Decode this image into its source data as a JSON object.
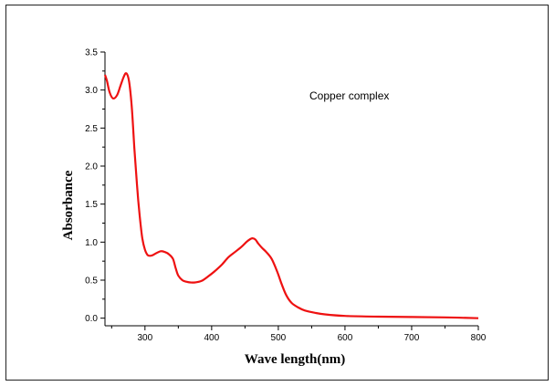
{
  "chart_data": {
    "type": "line",
    "title": "",
    "xlabel": "Wave length(nm)",
    "ylabel": "Absorbance",
    "xlim": [
      240,
      800
    ],
    "ylim": [
      -0.1,
      3.5
    ],
    "x_ticks": [
      300,
      400,
      500,
      600,
      700,
      800
    ],
    "y_ticks": [
      0.0,
      0.5,
      1.0,
      1.5,
      2.0,
      2.5,
      3.0,
      3.5
    ],
    "x_tick_labels": [
      "300",
      "400",
      "500",
      "600",
      "700",
      "800"
    ],
    "y_tick_labels": [
      "0.0",
      "0.5",
      "1.0",
      "1.5",
      "2.0",
      "2.5",
      "3.0",
      "3.5"
    ],
    "annotation": "Copper complex",
    "line_color": "#ee1111",
    "grid": false,
    "series": [
      {
        "name": "Copper complex",
        "x": [
          240,
          243,
          247,
          252,
          258,
          263,
          268,
          272,
          276,
          280,
          284,
          288,
          292,
          296,
          300,
          304,
          308,
          312,
          318,
          324,
          330,
          336,
          342,
          346,
          350,
          356,
          362,
          368,
          375,
          385,
          395,
          405,
          415,
          425,
          435,
          445,
          452,
          458,
          462,
          466,
          470,
          476,
          482,
          490,
          498,
          505,
          512,
          520,
          530,
          540,
          555,
          570,
          600,
          650,
          700,
          750,
          800
        ],
        "y": [
          3.2,
          3.12,
          2.97,
          2.89,
          2.93,
          3.05,
          3.17,
          3.22,
          3.12,
          2.8,
          2.25,
          1.75,
          1.35,
          1.05,
          0.9,
          0.83,
          0.82,
          0.83,
          0.86,
          0.88,
          0.87,
          0.84,
          0.78,
          0.66,
          0.56,
          0.5,
          0.48,
          0.47,
          0.47,
          0.49,
          0.55,
          0.62,
          0.7,
          0.8,
          0.87,
          0.94,
          1.0,
          1.04,
          1.05,
          1.03,
          0.98,
          0.92,
          0.87,
          0.78,
          0.62,
          0.45,
          0.3,
          0.2,
          0.14,
          0.1,
          0.07,
          0.05,
          0.03,
          0.02,
          0.015,
          0.01,
          0.0
        ]
      }
    ]
  }
}
